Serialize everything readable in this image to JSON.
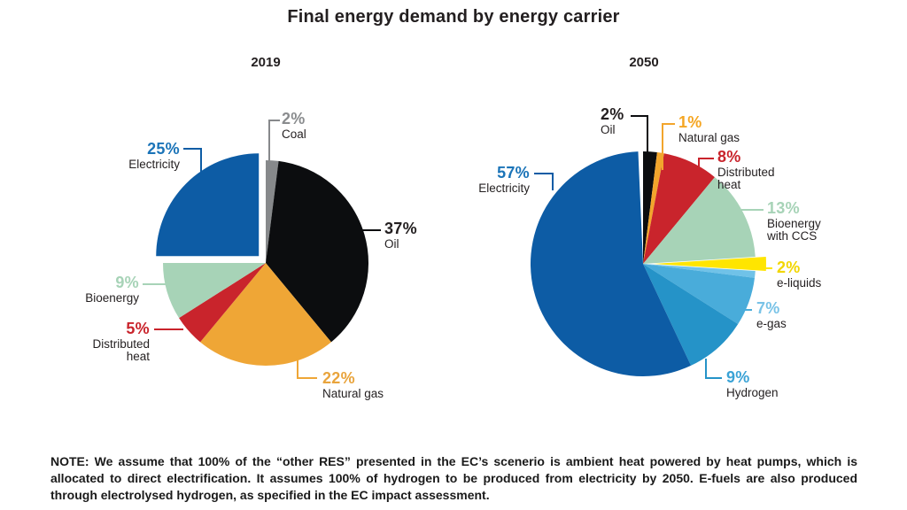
{
  "title": "Final energy demand by energy carrier",
  "note": "NOTE: We assume that 100% of the “other RES” presented in the EC’s scenerio is ambient heat powered by heat pumps, which is allocated to direct electrification. It assumes 100% of hydrogen to be produced from electricity by 2050. E-fuels are also produced through electrolysed hydrogen, as specified in the EC impact assessment.",
  "chart_data": [
    {
      "type": "pie",
      "title": "2019",
      "direction": "clockwise from 12 o'clock",
      "start_angle_deg": 0,
      "segments": [
        {
          "label": "Coal",
          "pct_label": "2%",
          "value": 2,
          "color": "#87898b",
          "label_color": "#8a8c8e",
          "exploded": false
        },
        {
          "label": "Oil",
          "pct_label": "37%",
          "value": 37,
          "color": "#0c0d0f",
          "label_color": "#231f20",
          "exploded": false
        },
        {
          "label": "Natural gas",
          "pct_label": "22%",
          "value": 22,
          "color": "#efa636",
          "label_color": "#e9a43c",
          "exploded": false
        },
        {
          "label": "Distributed heat",
          "pct_label": "5%",
          "value": 5,
          "color": "#c9242c",
          "label_color": "#c9242c",
          "exploded": false
        },
        {
          "label": "Bioenergy",
          "pct_label": "9%",
          "value": 9,
          "color": "#a7d3b7",
          "label_color": "#a7d3b7",
          "exploded": false
        },
        {
          "label": "Electricity",
          "pct_label": "25%",
          "value": 25,
          "color": "#0d5ca5",
          "label_color": "#1b74b8",
          "exploded": true
        }
      ]
    },
    {
      "type": "pie",
      "title": "2050",
      "direction": "clockwise from 12 o'clock",
      "start_angle_deg": 0,
      "segments": [
        {
          "label": "Oil",
          "pct_label": "2%",
          "value": 2,
          "color": "#0c0d0f",
          "label_color": "#231f20",
          "exploded": false
        },
        {
          "label": "Natural gas",
          "pct_label": "1%",
          "value": 1,
          "color": "#f2a52c",
          "label_color": "#f5a623",
          "exploded": false
        },
        {
          "label": "Distributed heat",
          "pct_label": "8%",
          "value": 8,
          "color": "#c9242c",
          "label_color": "#c9242c",
          "exploded": false
        },
        {
          "label": "Bioenergy with CCS",
          "pct_label": "13%",
          "value": 13,
          "color": "#a7d3b7",
          "label_color": "#a7d3b7",
          "exploded": false
        },
        {
          "label": "e-liquids",
          "pct_label": "2%",
          "value": 2,
          "color": "#ffe500",
          "label_color": "#f2d600",
          "exploded": true
        },
        {
          "label": "",
          "pct_label": "",
          "value": 1,
          "color": "#70c2e8",
          "label_color": "",
          "exploded": false
        },
        {
          "label": "e-gas",
          "pct_label": "7%",
          "value": 7,
          "color": "#49acda",
          "label_color": "#79c3e7",
          "exploded": false
        },
        {
          "label": "Hydrogen",
          "pct_label": "9%",
          "value": 9,
          "color": "#2593c8",
          "label_color": "#3ba3d6",
          "exploded": false
        },
        {
          "label": "Electricity",
          "pct_label": "57%",
          "value": 57,
          "color": "#0d5ca5",
          "label_color": "#1b74b8",
          "exploded": false
        }
      ]
    }
  ]
}
